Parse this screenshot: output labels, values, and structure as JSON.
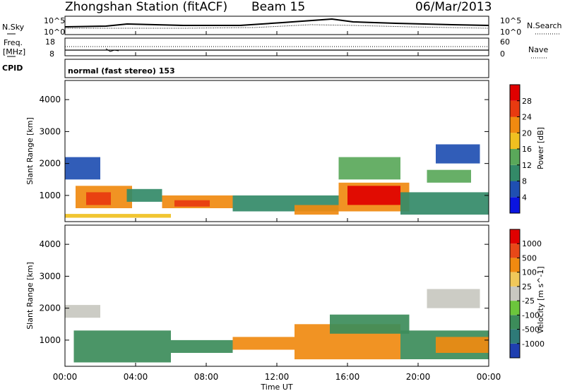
{
  "header": {
    "station": "Zhongshan Station (fitACF)",
    "beam": "Beam 15",
    "date": "06/Mar/2013"
  },
  "strips": {
    "nsky_label": "N.Sky",
    "nsky_ticks": [
      "10^5",
      "10^0"
    ],
    "nsearch_label": "N.Search",
    "nsearch_ticks": [
      "10^5",
      "10^0"
    ],
    "freq_label_1": "Freq.",
    "freq_label_2": "[MHz]",
    "freq_ticks": [
      "18",
      "8"
    ],
    "nave_label": "Nave",
    "nave_ticks": [
      "60",
      "0"
    ],
    "cpid_label": "CPID",
    "cpid_value": "normal (fast stereo) 153"
  },
  "chart_data": [
    {
      "type": "heatmap",
      "name": "power",
      "ylabel": "Slant Range [km]",
      "yticks": [
        "4000",
        "3000",
        "2000",
        "1000"
      ],
      "ylim": [
        180,
        4600
      ],
      "xlim": [
        0,
        24
      ],
      "colorbar_label": "Power [dB]",
      "colorbar_ticks": [
        "28",
        "24",
        "20",
        "16",
        "12",
        "8",
        "4"
      ],
      "colors": [
        "#0a14e0",
        "#1f4fb2",
        "#338a68",
        "#5aa85a",
        "#f0c020",
        "#f08a10",
        "#e83a10",
        "#e00000"
      ],
      "regions": [
        {
          "t0": 0.0,
          "t1": 6.0,
          "r0": 300,
          "r1": 420,
          "level": 4
        },
        {
          "t0": 0.0,
          "t1": 2.0,
          "r0": 1500,
          "r1": 2200,
          "level": 1
        },
        {
          "t0": 0.6,
          "t1": 3.8,
          "r0": 600,
          "r1": 1300,
          "level": 5
        },
        {
          "t0": 1.2,
          "t1": 2.6,
          "r0": 700,
          "r1": 1100,
          "level": 6
        },
        {
          "t0": 3.5,
          "t1": 5.5,
          "r0": 800,
          "r1": 1200,
          "level": 2
        },
        {
          "t0": 5.5,
          "t1": 9.5,
          "r0": 600,
          "r1": 1000,
          "level": 5
        },
        {
          "t0": 6.2,
          "t1": 8.2,
          "r0": 650,
          "r1": 850,
          "level": 6
        },
        {
          "t0": 9.5,
          "t1": 15.5,
          "r0": 500,
          "r1": 1000,
          "level": 2
        },
        {
          "t0": 13.0,
          "t1": 15.5,
          "r0": 400,
          "r1": 700,
          "level": 5
        },
        {
          "t0": 15.5,
          "t1": 19.5,
          "r0": 500,
          "r1": 1400,
          "level": 5
        },
        {
          "t0": 16.0,
          "t1": 19.0,
          "r0": 700,
          "r1": 1300,
          "level": 7
        },
        {
          "t0": 15.5,
          "t1": 19.0,
          "r0": 1500,
          "r1": 2200,
          "level": 3
        },
        {
          "t0": 19.0,
          "t1": 24.0,
          "r0": 400,
          "r1": 1100,
          "level": 2
        },
        {
          "t0": 21.0,
          "t1": 23.5,
          "r0": 2000,
          "r1": 2600,
          "level": 1
        },
        {
          "t0": 20.5,
          "t1": 23.0,
          "r0": 1400,
          "r1": 1800,
          "level": 3
        }
      ]
    },
    {
      "type": "heatmap",
      "name": "velocity",
      "ylabel": "Slant Range [km]",
      "yticks": [
        "4000",
        "3000",
        "2000",
        "1000"
      ],
      "ylim": [
        180,
        4600
      ],
      "xlim": [
        0,
        24
      ],
      "xticks": [
        "00:00",
        "04:00",
        "08:00",
        "12:00",
        "16:00",
        "20:00",
        "00:00"
      ],
      "xlabel": "Time UT",
      "colorbar_label": "Velocity [m s^-1]",
      "colorbar_ticks": [
        "1000",
        "500",
        "100",
        "25",
        "-25",
        "-100",
        "-500",
        "-1000"
      ],
      "colors": [
        "#1f3fb0",
        "#2e7a78",
        "#3c8c5a",
        "#6cc63c",
        "#c8c8c0",
        "#f0c85a",
        "#f08a10",
        "#e84818",
        "#e00000"
      ],
      "regions": [
        {
          "t0": 0.0,
          "t1": 2.0,
          "r0": 1700,
          "r1": 2100,
          "level": 4
        },
        {
          "t0": 0.5,
          "t1": 6.0,
          "r0": 300,
          "r1": 1300,
          "level": 2
        },
        {
          "t0": 6.0,
          "t1": 9.5,
          "r0": 600,
          "r1": 1000,
          "level": 2
        },
        {
          "t0": 9.5,
          "t1": 13.0,
          "r0": 700,
          "r1": 1100,
          "level": 6
        },
        {
          "t0": 13.0,
          "t1": 19.0,
          "r0": 400,
          "r1": 1500,
          "level": 6
        },
        {
          "t0": 15.0,
          "t1": 19.5,
          "r0": 1200,
          "r1": 1800,
          "level": 2
        },
        {
          "t0": 19.0,
          "t1": 24.0,
          "r0": 400,
          "r1": 1300,
          "level": 2
        },
        {
          "t0": 20.5,
          "t1": 23.5,
          "r0": 2000,
          "r1": 2600,
          "level": 4
        },
        {
          "t0": 21.0,
          "t1": 24.0,
          "r0": 600,
          "r1": 1100,
          "level": 6
        }
      ]
    }
  ]
}
